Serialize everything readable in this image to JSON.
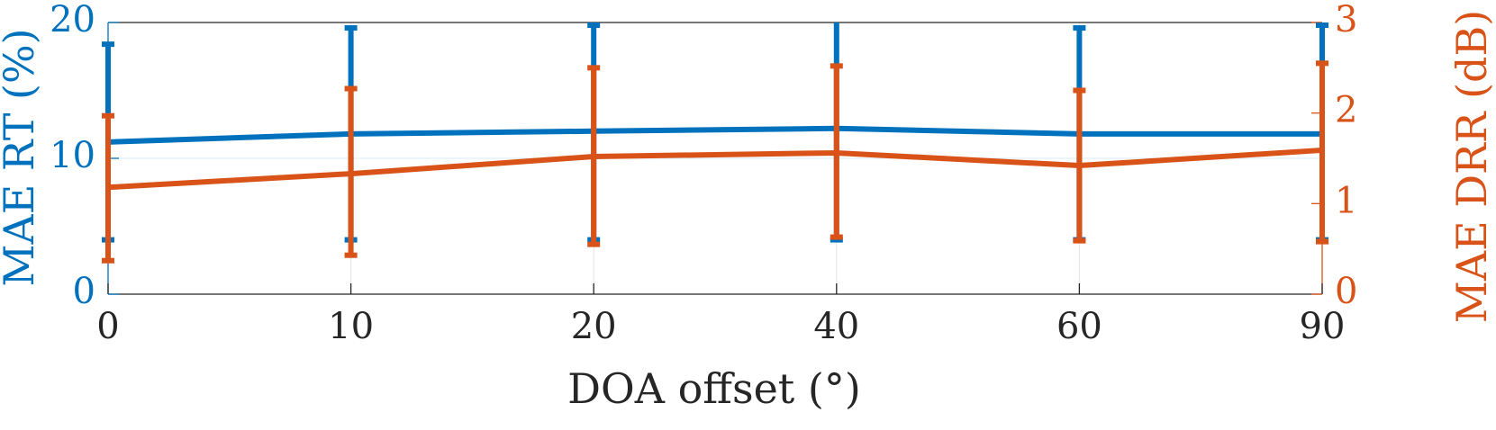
{
  "chart_data": {
    "type": "line",
    "title": "",
    "xlabel": "DOA offset (°)",
    "categories": [
      "0",
      "10",
      "20",
      "40",
      "60",
      "90"
    ],
    "y_left": {
      "label": "MAE RT (%)",
      "lim": [
        0,
        20
      ],
      "ticks": [
        0,
        10,
        20
      ],
      "color": "#0072BD"
    },
    "y_right": {
      "label": "MAE DRR (dB)",
      "lim": [
        0,
        3
      ],
      "ticks": [
        0,
        1,
        2,
        3
      ],
      "color": "#D95319"
    },
    "grid": true,
    "series": [
      {
        "name": "MAE RT",
        "axis": "left",
        "color": "#0072BD",
        "values": [
          11.2,
          11.8,
          12.0,
          12.2,
          11.8,
          11.8
        ],
        "err_low": [
          4.0,
          4.0,
          4.0,
          4.0,
          4.0,
          4.0
        ],
        "err_high": [
          18.4,
          19.6,
          19.8,
          20.2,
          19.6,
          19.8
        ]
      },
      {
        "name": "MAE DRR",
        "axis": "right",
        "color": "#D95319",
        "values": [
          1.18,
          1.33,
          1.52,
          1.56,
          1.42,
          1.59
        ],
        "err_low": [
          0.37,
          0.43,
          0.55,
          0.63,
          0.59,
          0.58
        ],
        "err_high": [
          1.97,
          2.27,
          2.5,
          2.52,
          2.25,
          2.55
        ]
      }
    ]
  }
}
